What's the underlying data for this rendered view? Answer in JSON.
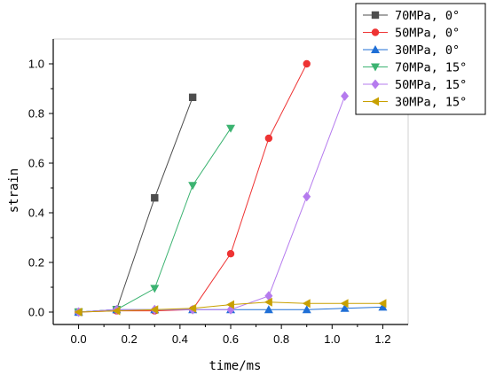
{
  "chart_data": {
    "type": "line",
    "title": "",
    "xlabel": "time/ms",
    "ylabel": "strain",
    "xlim": [
      -0.1,
      1.3
    ],
    "ylim": [
      -0.05,
      1.1
    ],
    "xticks": [
      0.0,
      0.2,
      0.4,
      0.6,
      0.8,
      1.0,
      1.2
    ],
    "xtick_labels": [
      "0.0",
      "0.2",
      "0.4",
      "0.6",
      "0.8",
      "1.0",
      "1.2"
    ],
    "yticks": [
      0.0,
      0.2,
      0.4,
      0.6,
      0.8,
      1.0
    ],
    "ytick_labels": [
      "0.0",
      "0.2",
      "0.4",
      "0.6",
      "0.8",
      "1.0"
    ],
    "grid": false,
    "legend_position": "top-right",
    "series": [
      {
        "name": "70MPa, 0°",
        "color": "#4d4d4d",
        "marker": "square",
        "x": [
          0.0,
          0.15,
          0.3,
          0.45
        ],
        "y": [
          0.0,
          0.01,
          0.46,
          0.865
        ]
      },
      {
        "name": "50MPa, 0°",
        "color": "#ee3333",
        "marker": "circle",
        "x": [
          0.0,
          0.15,
          0.3,
          0.45,
          0.6,
          0.75,
          0.9
        ],
        "y": [
          0.0,
          0.005,
          0.005,
          0.01,
          0.235,
          0.7,
          1.0
        ]
      },
      {
        "name": "30MPa, 0°",
        "color": "#1f6fd6",
        "marker": "triangle-up",
        "x": [
          0.0,
          0.15,
          0.3,
          0.45,
          0.6,
          0.75,
          0.9,
          1.05,
          1.2
        ],
        "y": [
          0.0,
          0.01,
          0.01,
          0.01,
          0.01,
          0.01,
          0.01,
          0.015,
          0.02
        ]
      },
      {
        "name": "70MPa, 15°",
        "color": "#3cb371",
        "marker": "triangle-down",
        "x": [
          0.0,
          0.15,
          0.3,
          0.45,
          0.6
        ],
        "y": [
          0.0,
          0.01,
          0.095,
          0.51,
          0.74
        ]
      },
      {
        "name": "50MPa, 15°",
        "color": "#b57bee",
        "marker": "diamond",
        "x": [
          0.0,
          0.15,
          0.3,
          0.45,
          0.6,
          0.75,
          0.9,
          1.05
        ],
        "y": [
          0.0,
          0.01,
          0.01,
          0.01,
          0.01,
          0.065,
          0.465,
          0.87
        ]
      },
      {
        "name": "30MPa, 15°",
        "color": "#c8a000",
        "marker": "triangle-left",
        "x": [
          0.0,
          0.15,
          0.3,
          0.45,
          0.6,
          0.75,
          0.9,
          1.05,
          1.2
        ],
        "y": [
          0.0,
          0.005,
          0.01,
          0.015,
          0.03,
          0.04,
          0.035,
          0.035,
          0.035
        ]
      }
    ]
  }
}
